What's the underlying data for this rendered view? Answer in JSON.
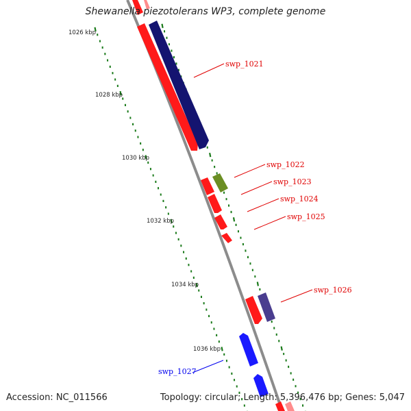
{
  "title": "Shewanella piezotolerans WP3, complete genome",
  "footer": {
    "accession": "Accession: NC_011566",
    "topology": "Topology: circular; Length: 5,396,476 bp; Genes: 5,047"
  },
  "colors": {
    "backbone": "#8c8c8c",
    "tick": "#1a7a1a",
    "red_gene": "#ff1a1a",
    "navy_gene": "#141470",
    "olive_gene": "#6b8e23",
    "purple_gene": "#4a3d8f",
    "blue_gene": "#1a1aff",
    "label_red": "#e00000",
    "label_blue": "#0000ee"
  },
  "ruler": {
    "labels": [
      "1026 kbp",
      "1028 kbp",
      "1030 kbp",
      "1032 kbp",
      "1034 kbp",
      "1036 kbp"
    ]
  },
  "genes": [
    {
      "name": "swp_1021",
      "color": "red"
    },
    {
      "name": "swp_1022",
      "color": "red"
    },
    {
      "name": "swp_1023",
      "color": "red"
    },
    {
      "name": "swp_1024",
      "color": "red"
    },
    {
      "name": "swp_1025",
      "color": "red"
    },
    {
      "name": "swp_1026",
      "color": "red"
    },
    {
      "name": "swp_1027",
      "color": "blue"
    }
  ]
}
